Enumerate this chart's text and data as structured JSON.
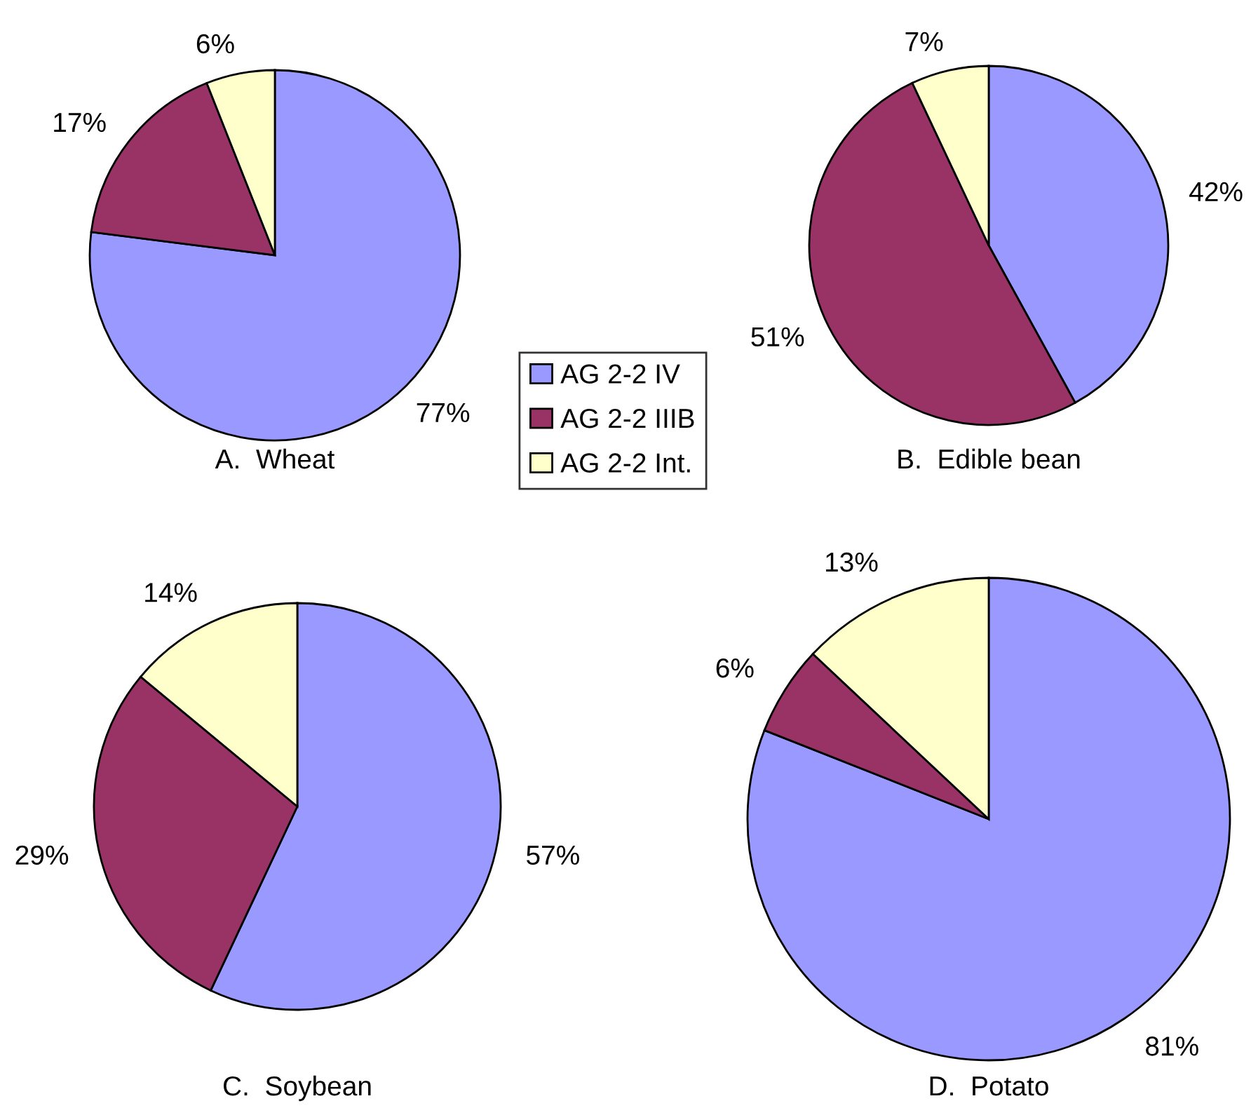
{
  "chart_data": [
    {
      "type": "pie",
      "title": "A.  Wheat",
      "categories": [
        "AG 2-2 IV",
        "AG 2-2 IIIB",
        "AG 2-2 Int."
      ],
      "values": [
        77,
        17,
        6
      ],
      "value_labels": [
        "77%",
        "17%",
        "6%"
      ],
      "colors": [
        "#9999ff",
        "#993366",
        "#ffffcc"
      ],
      "legend": "bottom right"
    },
    {
      "type": "pie",
      "title": "B.  Edible bean",
      "categories": [
        null,
        null,
        null
      ],
      "values": [
        42,
        51,
        7
      ],
      "value_labels": [
        "42%",
        "51%",
        "7%"
      ],
      "colors": [
        "#9999ff",
        "#993366",
        "#ffffcc"
      ]
    },
    {
      "type": "pie",
      "title": "C.  Soybean",
      "categories": [
        null,
        null,
        null
      ],
      "values": [
        57,
        29,
        14
      ],
      "value_labels": [
        "57%",
        "29%",
        "14%"
      ],
      "colors": [
        "#9999ff",
        "#993366",
        "#ffffcc"
      ]
    },
    {
      "type": "pie",
      "title": "D.  Potato",
      "categories": [
        null,
        null,
        null
      ],
      "values": [
        81,
        6,
        13
      ],
      "value_labels": [
        "81%",
        "6%",
        "13%"
      ],
      "colors": [
        "#9999ff",
        "#993366",
        "#ffffcc"
      ]
    }
  ]
}
